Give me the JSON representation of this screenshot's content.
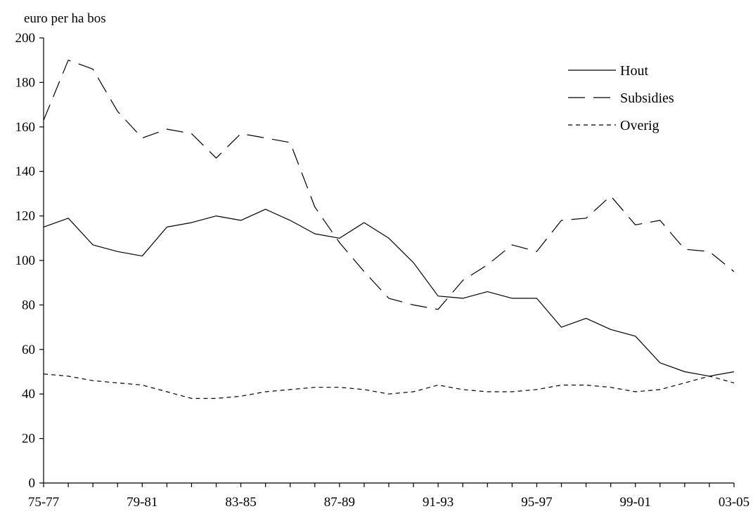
{
  "chart_data": {
    "type": "line",
    "title": "",
    "ylabel": "euro per ha bos",
    "xlabel": "",
    "ylim": [
      0,
      200
    ],
    "yticks": [
      0,
      20,
      40,
      60,
      80,
      100,
      120,
      140,
      160,
      180,
      200
    ],
    "x": [
      "75-77",
      "76-78",
      "77-79",
      "78-80",
      "79-81",
      "80-82",
      "81-83",
      "82-84",
      "83-85",
      "84-86",
      "85-87",
      "86-88",
      "87-89",
      "88-90",
      "89-91",
      "90-92",
      "91-93",
      "92-94",
      "93-95",
      "94-96",
      "95-97",
      "96-98",
      "97-99",
      "98-00",
      "99-01",
      "00-02",
      "01-03",
      "02-04",
      "03-05"
    ],
    "x_tick_labels": [
      "75-77",
      "79-81",
      "83-85",
      "87-89",
      "91-93",
      "95-97",
      "99-01",
      "03-05"
    ],
    "legend_position": "top-right",
    "grid": false,
    "series": [
      {
        "name": "Hout",
        "dash": "solid",
        "values": [
          115,
          119,
          107,
          104,
          102,
          115,
          117,
          120,
          118,
          123,
          118,
          112,
          110,
          117,
          110,
          99,
          84,
          83,
          86,
          83,
          83,
          70,
          74,
          69,
          66,
          54,
          50,
          48,
          50
        ]
      },
      {
        "name": "Subsidies",
        "dash": "long-dash",
        "values": [
          163,
          190,
          186,
          167,
          155,
          159,
          157,
          146,
          157,
          155,
          153,
          124,
          108,
          95,
          83,
          80,
          78,
          91,
          98,
          107,
          104,
          118,
          119,
          129,
          116,
          118,
          105,
          104,
          95
        ]
      },
      {
        "name": "Overig",
        "dash": "short-dash",
        "values": [
          49,
          48,
          46,
          45,
          44,
          41,
          38,
          38,
          39,
          41,
          42,
          43,
          43,
          42,
          40,
          41,
          44,
          42,
          41,
          41,
          42,
          44,
          44,
          43,
          41,
          42,
          45,
          48,
          45
        ]
      }
    ]
  }
}
